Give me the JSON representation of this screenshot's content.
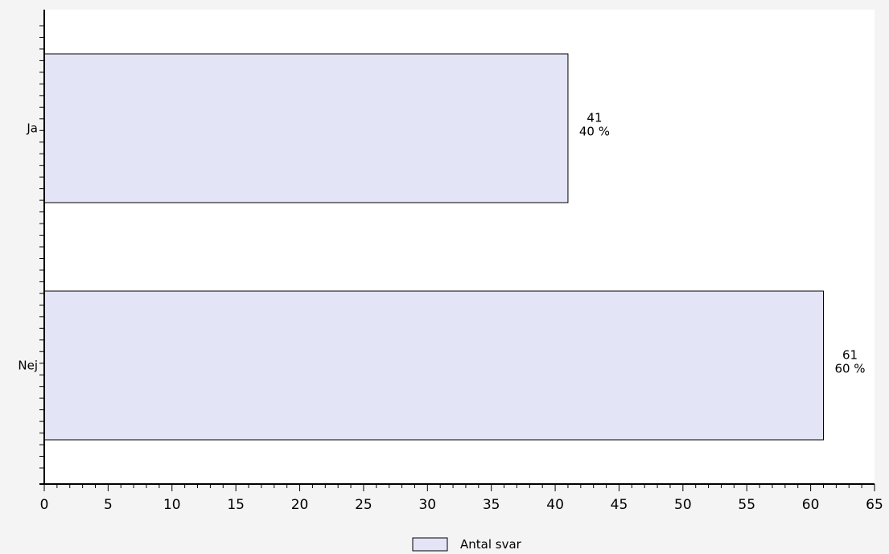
{
  "colors": {
    "bar_fill": "#e4e4f7",
    "bar_stroke": "#000000",
    "plot_bg": "#ffffff",
    "page_bg": "#f4f4f4",
    "axis": "#000000"
  },
  "chart_data": {
    "type": "bar",
    "orientation": "horizontal",
    "categories": [
      "Ja",
      "Nej"
    ],
    "series": [
      {
        "name": "Antal svar",
        "values": [
          41,
          61
        ],
        "percent_labels": [
          "40 %",
          "60 %"
        ]
      }
    ],
    "xlim": [
      0,
      65
    ],
    "xticks": [
      0,
      5,
      10,
      15,
      20,
      25,
      30,
      35,
      40,
      45,
      50,
      55,
      60,
      65
    ],
    "grid": false,
    "legend_position": "bottom-center",
    "title": "",
    "xlabel": "",
    "ylabel": ""
  }
}
